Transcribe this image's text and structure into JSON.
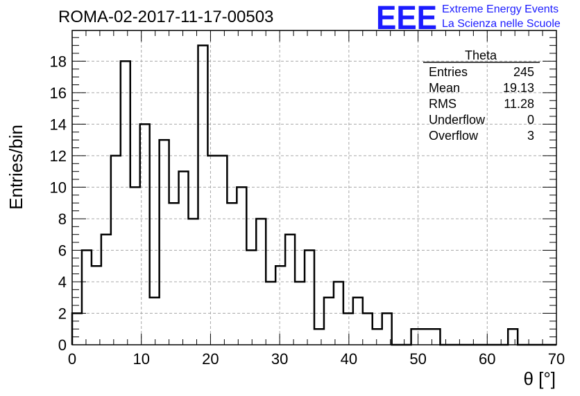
{
  "chart_data": {
    "type": "bar",
    "title": "ROMA-02-2017-11-17-00503",
    "xlabel": "θ [°]",
    "ylabel": "Entries/bin",
    "xlim": [
      0,
      70
    ],
    "ylim": [
      0,
      19.95
    ],
    "grid": true,
    "bin_edges": [
      0,
      1.4,
      2.8,
      4.2,
      5.6,
      7.0,
      8.4,
      9.8,
      11.2,
      12.6,
      14.0,
      15.4,
      16.8,
      18.2,
      19.6,
      21.0,
      22.4,
      23.8,
      25.2,
      26.6,
      28.0,
      29.4,
      30.8,
      32.2,
      33.6,
      35.0,
      36.4,
      37.8,
      39.2,
      40.6,
      42.0,
      43.4,
      44.8,
      46.2,
      47.6,
      49.0,
      50.4,
      51.8,
      53.2,
      54.6,
      56.0,
      57.4,
      58.8,
      60.2,
      61.6,
      63.0,
      64.4,
      65.8,
      67.2,
      68.6,
      70.0
    ],
    "values": [
      2,
      6,
      5,
      7,
      12,
      18,
      10,
      14,
      3,
      13,
      9,
      11,
      8,
      19,
      12,
      12,
      9,
      10,
      6,
      8,
      4,
      5,
      7,
      4,
      6,
      1,
      3,
      4,
      2,
      3,
      2,
      1,
      2,
      0,
      0,
      1,
      1,
      1,
      0,
      0,
      0,
      0,
      0,
      0,
      0,
      1,
      0,
      0,
      0,
      0
    ],
    "xticks": [
      "0",
      "10",
      "20",
      "30",
      "40",
      "50",
      "60",
      "70"
    ],
    "yticks": [
      "0",
      "2",
      "4",
      "6",
      "8",
      "10",
      "12",
      "14",
      "16",
      "18"
    ]
  },
  "stats_box": {
    "name": "Theta",
    "rows": [
      {
        "label": "Entries",
        "value": "245"
      },
      {
        "label": "Mean",
        "value": "19.13"
      },
      {
        "label": "RMS",
        "value": "11.28"
      },
      {
        "label": "Underflow",
        "value": "0"
      },
      {
        "label": "Overflow",
        "value": "3"
      }
    ]
  },
  "logo": {
    "mark": "EEE",
    "line1": "Extreme Energy Events",
    "line2": "La Scienza nelle Scuole"
  }
}
